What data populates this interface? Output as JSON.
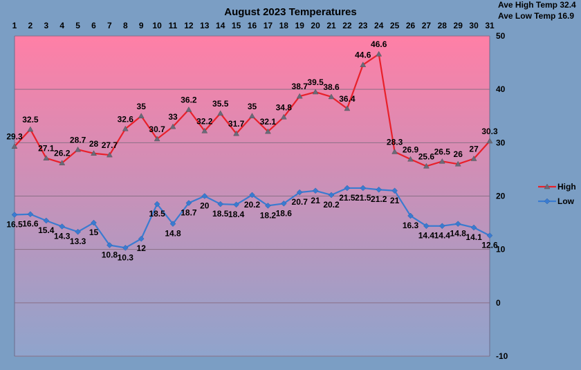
{
  "chart_data": {
    "type": "line",
    "title": "August 2023 Temperatures",
    "x": [
      1,
      2,
      3,
      4,
      5,
      6,
      7,
      8,
      9,
      10,
      11,
      12,
      13,
      14,
      15,
      16,
      17,
      18,
      19,
      20,
      21,
      22,
      23,
      24,
      25,
      26,
      27,
      28,
      29,
      30,
      31
    ],
    "ylim": [
      -10,
      50
    ],
    "yticks": [
      -10,
      0,
      10,
      20,
      30,
      40,
      50
    ],
    "grid": true,
    "legend": "right",
    "series": [
      {
        "name": "High",
        "color": "#e8202a",
        "marker": "triangle",
        "values": [
          29.3,
          32.5,
          27.1,
          26.2,
          28.7,
          28,
          27.7,
          32.6,
          35,
          30.7,
          33,
          36.2,
          32.2,
          35.5,
          31.7,
          35,
          32.1,
          34.8,
          38.7,
          39.5,
          38.6,
          36.4,
          44.6,
          46.6,
          28.3,
          26.9,
          25.6,
          26.5,
          26,
          27,
          30.3
        ]
      },
      {
        "name": "Low",
        "color": "#3a7bd0",
        "marker": "diamond",
        "values": [
          16.5,
          16.6,
          15.4,
          14.3,
          13.3,
          15,
          10.8,
          10.3,
          12,
          18.5,
          14.8,
          18.7,
          20,
          18.5,
          18.4,
          20.2,
          18.2,
          18.6,
          20.7,
          21,
          20.2,
          21.5,
          21.5,
          21.2,
          21,
          16.3,
          14.4,
          14.4,
          14.8,
          14.1,
          12.6
        ]
      }
    ],
    "stats": [
      "Ave High Temp 32.4",
      "Ave Low Temp 16.9"
    ],
    "colors": {
      "background": "#7b9ec4",
      "plot_top": "#ff7fa6",
      "plot_bottom": "#8fa4cc",
      "gridline": "#8a6f86",
      "axis": "#6c6c8c"
    }
  }
}
